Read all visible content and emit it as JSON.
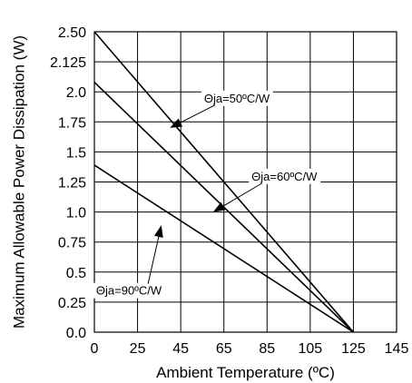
{
  "chart_data": {
    "type": "line",
    "title": "",
    "xlabel": "Ambient Temperature (ºC)",
    "ylabel": "Maximum Allowable Power Dissipation (W)",
    "xlim": [
      0,
      145
    ],
    "ylim": [
      0,
      2.5
    ],
    "grid": true,
    "x_ticks": [
      0,
      25,
      45,
      65,
      85,
      105,
      125,
      145
    ],
    "x_tick_labels": [
      "0",
      "25",
      "45",
      "65",
      "85",
      "105",
      "125",
      "145"
    ],
    "y_ticks": [
      2.5,
      2.125,
      2.0,
      1.75,
      1.5,
      1.25,
      1.0,
      0.75,
      0.5,
      0.25,
      0.0
    ],
    "y_tick_labels": [
      "2.50",
      "2.125",
      "2.0",
      "1.75",
      "1.5",
      "1.25",
      "1.0",
      "0.75",
      "0.5",
      "0.25",
      "0.0"
    ],
    "series": [
      {
        "name": "Θja=50ºC/W",
        "x": [
          0,
          125
        ],
        "y": [
          2.5,
          0.0
        ]
      },
      {
        "name": "Θja=60ºC/W",
        "x": [
          0,
          125
        ],
        "y": [
          2.08,
          0.0
        ]
      },
      {
        "name": "Θja=90ºC/W",
        "x": [
          0,
          125
        ],
        "y": [
          1.39,
          0.0
        ]
      }
    ],
    "annotations": [
      {
        "text": "Θja=50ºC/W",
        "series": "Θja=50ºC/W",
        "point": [
          40,
          1.7
        ],
        "text_at": [
          71,
          1.95
        ]
      },
      {
        "text": "Θja=60ºC/W",
        "series": "Θja=60ºC/W",
        "point": [
          60,
          1.0
        ],
        "text_at": [
          93,
          1.3
        ]
      },
      {
        "text": "Θja=90ºC/W",
        "series": "Θja=90ºC/W",
        "point": [
          36,
          0.89
        ],
        "text_at": [
          20,
          0.35
        ]
      }
    ],
    "line_color": "#000000",
    "grid_color": "#000000"
  }
}
